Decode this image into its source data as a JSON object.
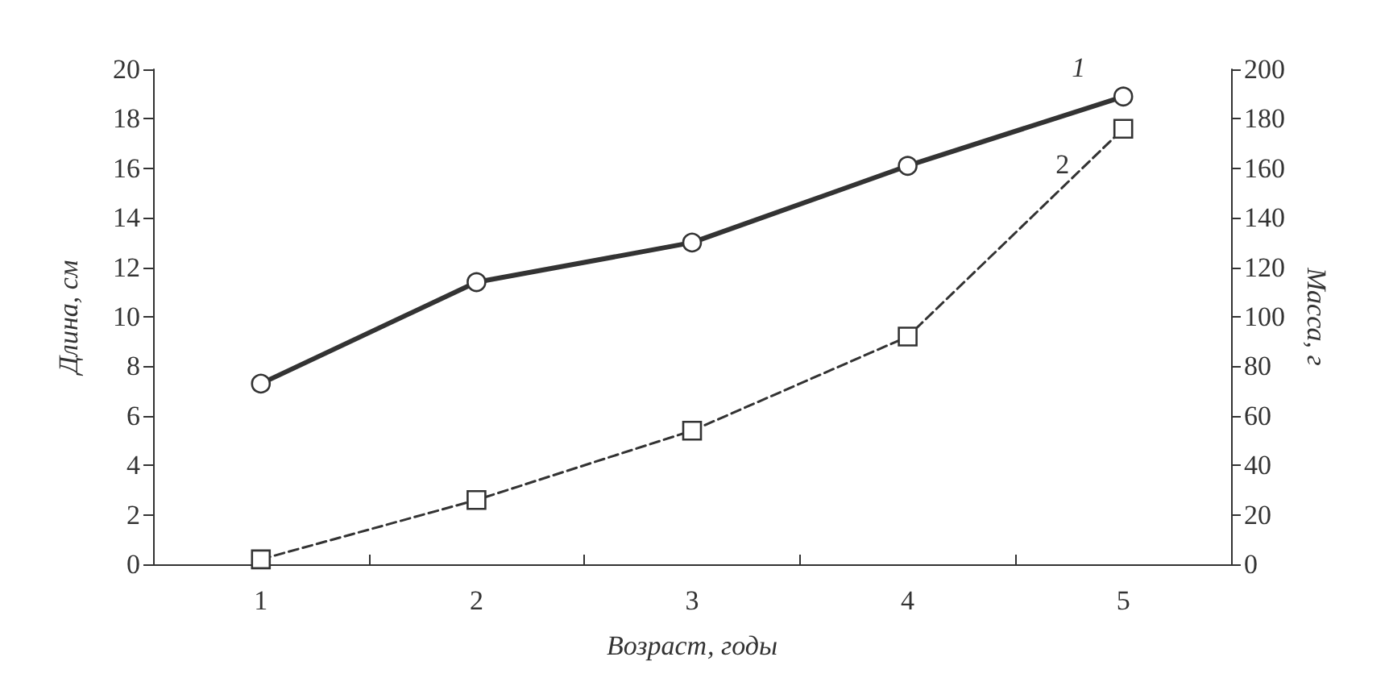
{
  "chart_data": {
    "type": "line",
    "xlabel": "Возраст, годы",
    "ylabel": "Длина, см",
    "y2label": "Масса, г",
    "categories": [
      "1",
      "2",
      "3",
      "4",
      "5"
    ],
    "ylim": [
      0,
      20
    ],
    "yticks": [
      0,
      2,
      4,
      6,
      8,
      10,
      12,
      14,
      16,
      18,
      20
    ],
    "y2lim": [
      0,
      200
    ],
    "y2ticks": [
      0,
      20,
      40,
      60,
      80,
      100,
      120,
      140,
      160,
      180,
      200
    ],
    "grid": false,
    "legend": false,
    "series": [
      {
        "name": "1",
        "color": "#333333",
        "values": [
          7.3,
          11.4,
          13,
          16.1,
          18.9
        ],
        "marker": "circle",
        "line_style": "solid"
      },
      {
        "name": "2",
        "axis": "y2",
        "color": "#333333",
        "values": [
          2,
          26,
          54,
          92,
          176
        ],
        "marker": "square",
        "line_style": "dashed"
      }
    ]
  }
}
